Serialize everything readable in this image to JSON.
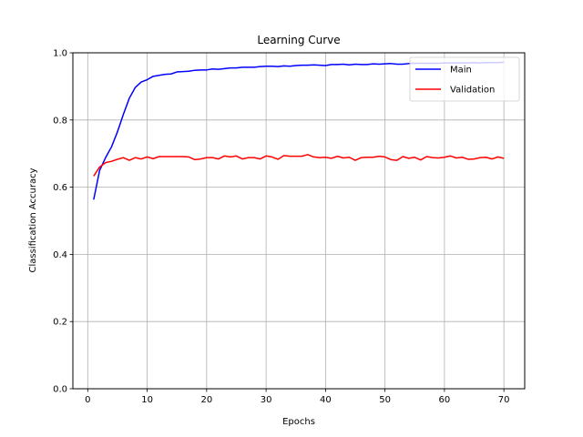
{
  "chart_data": {
    "type": "line",
    "title": "Learning Curve",
    "xlabel": "Epochs",
    "ylabel": "Classification Accuracy",
    "xlim": [
      -2.5,
      73.5
    ],
    "ylim": [
      0.0,
      1.0
    ],
    "xticks": [
      0,
      10,
      20,
      30,
      40,
      50,
      60,
      70
    ],
    "yticks": [
      0.0,
      0.2,
      0.4,
      0.6,
      0.8,
      1.0
    ],
    "xtick_labels": [
      "0",
      "10",
      "20",
      "30",
      "40",
      "50",
      "60",
      "70"
    ],
    "ytick_labels": [
      "0.0",
      "0.2",
      "0.4",
      "0.6",
      "0.8",
      "1.0"
    ],
    "grid": true,
    "legend_position": "top-right",
    "x": [
      1,
      2,
      3,
      4,
      5,
      6,
      7,
      8,
      9,
      10,
      11,
      12,
      13,
      14,
      15,
      16,
      17,
      18,
      19,
      20,
      21,
      22,
      23,
      24,
      25,
      26,
      27,
      28,
      29,
      30,
      31,
      32,
      33,
      34,
      35,
      36,
      37,
      38,
      39,
      40,
      41,
      42,
      43,
      44,
      45,
      46,
      47,
      48,
      49,
      50,
      51,
      52,
      53,
      54,
      55,
      56,
      57,
      58,
      59,
      60,
      61,
      62,
      63,
      64,
      65,
      66,
      67,
      68,
      69,
      70
    ],
    "series": [
      {
        "name": "Main",
        "color": "#0000ff",
        "values": [
          0.563,
          0.65,
          0.688,
          0.72,
          0.765,
          0.817,
          0.865,
          0.897,
          0.913,
          0.92,
          0.93,
          0.933,
          0.936,
          0.937,
          0.943,
          0.944,
          0.945,
          0.948,
          0.949,
          0.949,
          0.952,
          0.951,
          0.953,
          0.955,
          0.955,
          0.957,
          0.957,
          0.957,
          0.959,
          0.96,
          0.96,
          0.959,
          0.961,
          0.96,
          0.962,
          0.963,
          0.963,
          0.964,
          0.963,
          0.962,
          0.965,
          0.965,
          0.966,
          0.964,
          0.966,
          0.965,
          0.965,
          0.967,
          0.966,
          0.967,
          0.968,
          0.966,
          0.966,
          0.968,
          0.969,
          0.969,
          0.969,
          0.969,
          0.969,
          0.97,
          0.97,
          0.97,
          0.97,
          0.97,
          0.971,
          0.97,
          0.971,
          0.971,
          0.971,
          0.972
        ]
      },
      {
        "name": "Validation",
        "color": "#ff0000",
        "values": [
          0.633,
          0.66,
          0.673,
          0.677,
          0.683,
          0.688,
          0.68,
          0.688,
          0.684,
          0.69,
          0.685,
          0.691,
          0.691,
          0.691,
          0.691,
          0.691,
          0.69,
          0.682,
          0.684,
          0.688,
          0.688,
          0.684,
          0.693,
          0.69,
          0.693,
          0.684,
          0.688,
          0.688,
          0.684,
          0.693,
          0.69,
          0.683,
          0.694,
          0.692,
          0.692,
          0.692,
          0.697,
          0.69,
          0.688,
          0.689,
          0.686,
          0.692,
          0.687,
          0.689,
          0.68,
          0.688,
          0.689,
          0.689,
          0.692,
          0.69,
          0.682,
          0.68,
          0.691,
          0.686,
          0.689,
          0.681,
          0.691,
          0.688,
          0.687,
          0.689,
          0.693,
          0.687,
          0.689,
          0.683,
          0.684,
          0.688,
          0.689,
          0.684,
          0.69,
          0.686
        ]
      }
    ]
  }
}
